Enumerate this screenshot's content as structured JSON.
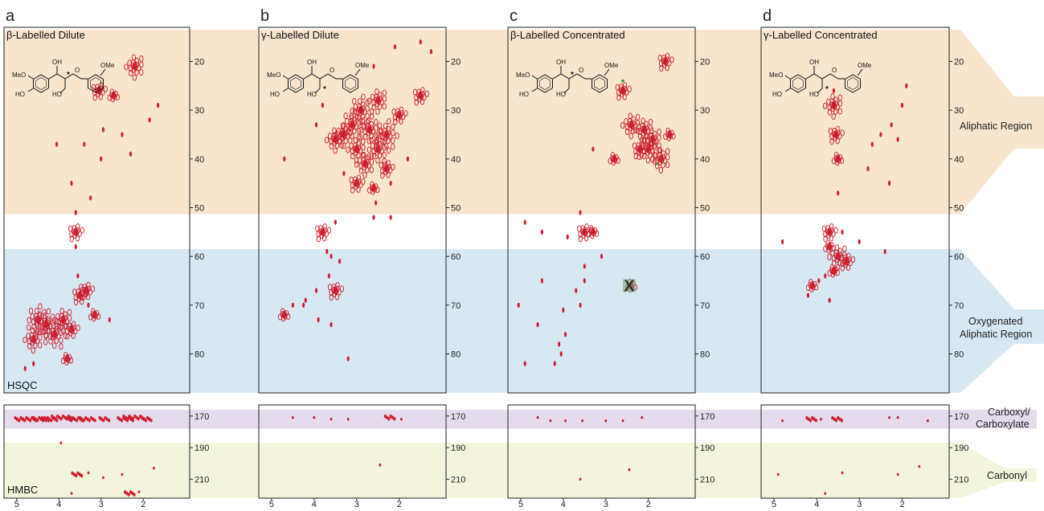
{
  "panels": [
    {
      "letter": "a",
      "title": "β-Labelled Dilute",
      "hsqc_label": "HSQC",
      "hmbc_label": "HMBC",
      "star_position": "beta",
      "peaks": [
        [
          2.2,
          21,
          4
        ],
        [
          3.05,
          26,
          3
        ],
        [
          2.7,
          27,
          1.5
        ],
        [
          1.65,
          29,
          1
        ],
        [
          1.85,
          32,
          1
        ],
        [
          4.05,
          37,
          1
        ],
        [
          3.4,
          37,
          1
        ],
        [
          2.95,
          34,
          1
        ],
        [
          2.5,
          35,
          1
        ],
        [
          2.3,
          39,
          1
        ],
        [
          3.0,
          40,
          1
        ],
        [
          3.7,
          45,
          1
        ],
        [
          3.25,
          48,
          1
        ],
        [
          3.6,
          51,
          1
        ],
        [
          3.6,
          55,
          3
        ],
        [
          3.6,
          58,
          1
        ],
        [
          3.35,
          67,
          3
        ],
        [
          3.5,
          68,
          3
        ],
        [
          3.15,
          72,
          2
        ],
        [
          4.5,
          73,
          5
        ],
        [
          4.3,
          74,
          5
        ],
        [
          4.1,
          76,
          5
        ],
        [
          3.9,
          73,
          4
        ],
        [
          3.7,
          75,
          3
        ],
        [
          4.6,
          77,
          4
        ],
        [
          3.3,
          70,
          1
        ],
        [
          2.8,
          73,
          1
        ],
        [
          3.8,
          81,
          2
        ],
        [
          4.6,
          82,
          1
        ],
        [
          4.8,
          83,
          1
        ],
        [
          3.55,
          64,
          1
        ]
      ],
      "hmbc_peaks": [
        [
          4.7,
          172,
          3
        ],
        [
          4.4,
          172,
          3
        ],
        [
          4.2,
          172,
          3
        ],
        [
          3.9,
          171,
          4
        ],
        [
          3.6,
          172,
          3
        ],
        [
          3.3,
          172,
          3
        ],
        [
          2.9,
          172,
          2
        ],
        [
          2.4,
          172,
          3
        ],
        [
          2.2,
          171,
          4
        ],
        [
          1.9,
          172,
          2
        ],
        [
          4.9,
          172,
          2
        ],
        [
          3.95,
          187,
          1
        ],
        [
          3.55,
          207,
          2
        ],
        [
          3.3,
          206,
          1
        ],
        [
          2.95,
          209,
          1
        ],
        [
          2.5,
          207,
          1
        ],
        [
          1.75,
          203,
          1
        ],
        [
          2.3,
          219,
          2
        ],
        [
          2.1,
          218,
          1
        ],
        [
          3.7,
          219,
          1
        ]
      ]
    },
    {
      "letter": "b",
      "title": "γ-Labelled Dilute",
      "star_position": "gamma",
      "peaks": [
        [
          1.5,
          16,
          1
        ],
        [
          2.1,
          17,
          1
        ],
        [
          1.25,
          18,
          1
        ],
        [
          2.6,
          21,
          1
        ],
        [
          3.8,
          29,
          1
        ],
        [
          2.5,
          28,
          4
        ],
        [
          2.9,
          30,
          5
        ],
        [
          3.1,
          33,
          5
        ],
        [
          2.7,
          34,
          5
        ],
        [
          2.3,
          35,
          5
        ],
        [
          3.3,
          35,
          4
        ],
        [
          3.5,
          36,
          4
        ],
        [
          2.5,
          38,
          5
        ],
        [
          2.0,
          31,
          3
        ],
        [
          3.0,
          38,
          4
        ],
        [
          2.8,
          41,
          4
        ],
        [
          2.3,
          42,
          3
        ],
        [
          3.0,
          45,
          3
        ],
        [
          2.6,
          46,
          2
        ],
        [
          2.2,
          45,
          1
        ],
        [
          2.55,
          49,
          1
        ],
        [
          3.3,
          43,
          1
        ],
        [
          1.8,
          40,
          1
        ],
        [
          1.5,
          27,
          3
        ],
        [
          4.7,
          40,
          1
        ],
        [
          3.95,
          33,
          1
        ],
        [
          2.6,
          52,
          1
        ],
        [
          2.2,
          52,
          1
        ],
        [
          3.8,
          55,
          3
        ],
        [
          3.5,
          53,
          1
        ],
        [
          3.7,
          59,
          1
        ],
        [
          3.6,
          60,
          1
        ],
        [
          3.4,
          61,
          1
        ],
        [
          3.5,
          67,
          3
        ],
        [
          3.65,
          64,
          1
        ],
        [
          3.95,
          67,
          1
        ],
        [
          4.2,
          69,
          1
        ],
        [
          4.7,
          72,
          2
        ],
        [
          4.5,
          70,
          1
        ],
        [
          4.25,
          70,
          1
        ],
        [
          3.9,
          73,
          1
        ],
        [
          3.6,
          74,
          1
        ],
        [
          3.2,
          81,
          1
        ]
      ],
      "hmbc_peaks": [
        [
          4.5,
          171,
          1
        ],
        [
          4.0,
          171,
          1
        ],
        [
          3.6,
          172,
          1
        ],
        [
          3.2,
          172,
          1
        ],
        [
          2.2,
          171,
          2
        ],
        [
          1.95,
          172,
          1
        ],
        [
          2.45,
          201,
          1
        ]
      ]
    },
    {
      "letter": "c",
      "title": "β-Labelled Concentrated",
      "star_position": "beta",
      "green_marker": "X",
      "peaks": [
        [
          1.6,
          20,
          3
        ],
        [
          2.6,
          26,
          3
        ],
        [
          2.4,
          33,
          4
        ],
        [
          2.1,
          34,
          4
        ],
        [
          1.9,
          36,
          4
        ],
        [
          2.0,
          38,
          5
        ],
        [
          1.7,
          40,
          4
        ],
        [
          2.2,
          38,
          3
        ],
        [
          1.5,
          35,
          2
        ],
        [
          2.8,
          40,
          2
        ],
        [
          3.3,
          38,
          1
        ],
        [
          3.6,
          51,
          1
        ],
        [
          4.9,
          53,
          1
        ],
        [
          4.5,
          55,
          1
        ],
        [
          3.9,
          56,
          1
        ],
        [
          3.5,
          55,
          3
        ],
        [
          3.3,
          55,
          2
        ],
        [
          3.1,
          60,
          1
        ],
        [
          3.5,
          62,
          1
        ],
        [
          3.5,
          65,
          1
        ],
        [
          2.4,
          66,
          2
        ],
        [
          4.5,
          65,
          1
        ],
        [
          3.7,
          67,
          1
        ],
        [
          3.6,
          70,
          1
        ],
        [
          4.0,
          71,
          1
        ],
        [
          4.6,
          74,
          1
        ],
        [
          3.95,
          76,
          1
        ],
        [
          4.1,
          78,
          1
        ],
        [
          4.05,
          80,
          1
        ],
        [
          4.2,
          82,
          1
        ],
        [
          5.05,
          70,
          1
        ],
        [
          4.9,
          82,
          1
        ]
      ],
      "hmbc_peaks": [
        [
          4.6,
          171,
          1
        ],
        [
          4.3,
          173,
          1
        ],
        [
          3.95,
          173,
          1
        ],
        [
          3.55,
          173,
          1
        ],
        [
          3.0,
          173,
          1
        ],
        [
          2.6,
          173,
          1
        ],
        [
          2.15,
          171,
          1
        ],
        [
          3.6,
          210,
          1
        ],
        [
          2.45,
          204,
          1
        ]
      ]
    },
    {
      "letter": "d",
      "title": "γ-Labelled Concentrated",
      "star_position": "gamma",
      "peaks": [
        [
          1.9,
          25,
          1
        ],
        [
          3.6,
          26,
          1
        ],
        [
          3.6,
          29,
          4
        ],
        [
          2.0,
          29,
          1
        ],
        [
          3.55,
          35,
          3
        ],
        [
          2.5,
          35,
          1
        ],
        [
          2.1,
          36,
          1
        ],
        [
          2.25,
          33,
          1
        ],
        [
          2.7,
          37,
          1
        ],
        [
          3.5,
          40,
          2
        ],
        [
          2.8,
          42,
          1
        ],
        [
          2.3,
          45,
          1
        ],
        [
          3.5,
          47,
          1
        ],
        [
          3.7,
          55,
          3
        ],
        [
          3.4,
          55,
          1
        ],
        [
          3.7,
          58,
          2
        ],
        [
          3.5,
          60,
          4
        ],
        [
          3.3,
          61,
          3
        ],
        [
          3.6,
          63,
          2
        ],
        [
          3.8,
          64,
          1
        ],
        [
          3.95,
          65,
          1
        ],
        [
          4.1,
          66,
          2
        ],
        [
          4.2,
          68,
          1
        ],
        [
          3.7,
          69,
          1
        ],
        [
          3.0,
          57,
          1
        ],
        [
          4.8,
          57,
          1
        ],
        [
          2.4,
          59,
          1
        ]
      ],
      "hmbc_peaks": [
        [
          4.8,
          173,
          1
        ],
        [
          4.1,
          172,
          2
        ],
        [
          3.9,
          172,
          1
        ],
        [
          3.5,
          172,
          2
        ],
        [
          2.3,
          171,
          1
        ],
        [
          2.1,
          171,
          1
        ],
        [
          1.4,
          173,
          1
        ],
        [
          4.9,
          207,
          1
        ],
        [
          3.4,
          206,
          1
        ],
        [
          2.1,
          207,
          1
        ],
        [
          1.6,
          202,
          1
        ],
        [
          3.8,
          219,
          1
        ]
      ]
    }
  ],
  "chart_data": {
    "type": "scatter",
    "x_axis": {
      "range": [
        0.9,
        5.3
      ],
      "ticks": [
        5,
        4,
        3,
        2
      ],
      "reversed": true
    },
    "hsqc_y_axis": {
      "range": [
        13,
        88
      ],
      "ticks": [
        20,
        30,
        40,
        50,
        60,
        70,
        80
      ],
      "reversed": true
    },
    "hmbc_y_axis": {
      "range": [
        163,
        222
      ],
      "ticks": [
        170,
        190,
        210
      ],
      "reversed": true
    }
  },
  "structure": {
    "oh_label": "OH",
    "ome_label": "OMe",
    "meo_label": "MeO",
    "ho_label": "HO",
    "o_label": "O",
    "star": "*"
  },
  "regions": {
    "aliphatic": "Aliphatic Region",
    "oxygenated": [
      "Oxygenated",
      "Aliphatic Region"
    ],
    "carboxyl": [
      "Carboxyl/",
      "Carboxylate"
    ],
    "carbonyl": "Carbonyl"
  },
  "colors": {
    "aliphatic": "#f8e5cd",
    "oxygenated": "#d7e8f3",
    "carboxyl": "#e4dcec",
    "carbonyl": "#f3f4dc",
    "peak": "#cd1f2f",
    "green": "#3c9a3c"
  }
}
